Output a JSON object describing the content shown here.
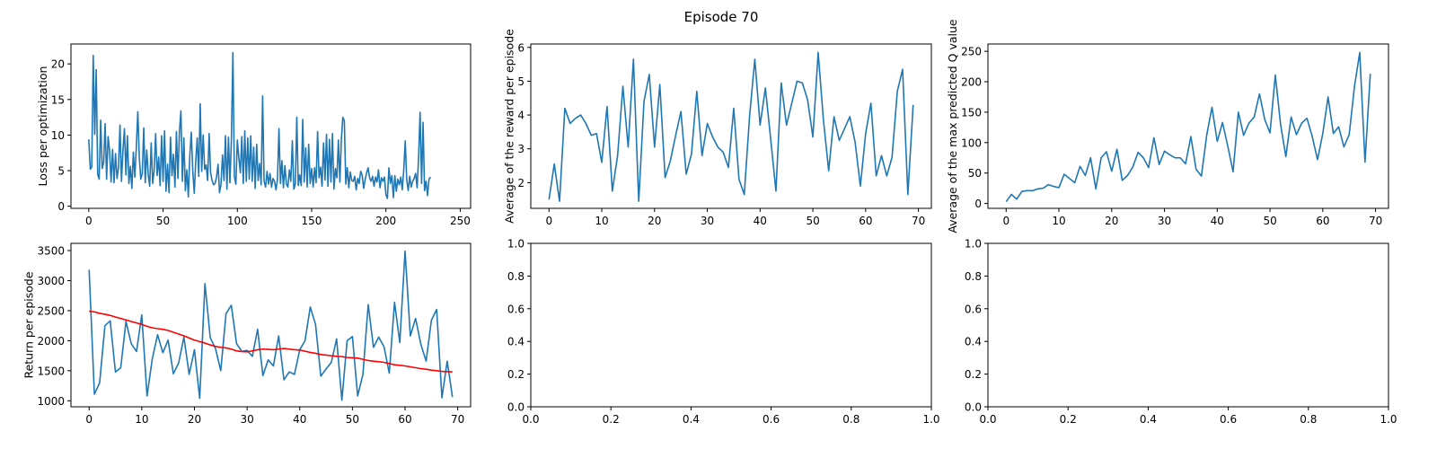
{
  "figure": {
    "title": "Episode 70"
  },
  "chart_data": [
    {
      "type": "line",
      "ylabel": "Loss per optimization",
      "xlim": [
        -12,
        257
      ],
      "ylim": [
        -0.3,
        22.8
      ],
      "xticks": [
        0,
        50,
        100,
        150,
        200,
        250
      ],
      "yticks": [
        0,
        5,
        10,
        15,
        20
      ],
      "series": [
        {
          "color": "#1f77b4",
          "x_start": 0,
          "y": [
            9.4,
            5.2,
            5.5,
            21.2,
            10.1,
            19.2,
            4.5,
            3.8,
            12.1,
            5.3,
            6.1,
            11.6,
            3.8,
            9.8,
            7.8,
            3.4,
            8.0,
            3.3,
            7.4,
            3.9,
            5.4,
            11.4,
            3.5,
            7.9,
            10.9,
            4.4,
            9.9,
            3.2,
            5.6,
            2.5,
            7.6,
            4.1,
            8.3,
            13.3,
            6.9,
            3.8,
            4.6,
            11.0,
            3.3,
            7.9,
            4.5,
            2.8,
            8.9,
            3.2,
            5.0,
            10.2,
            4.3,
            6.9,
            2.9,
            9.9,
            3.5,
            10.6,
            2.1,
            5.9,
            1.9,
            9.7,
            4.3,
            7.3,
            2.7,
            10.5,
            3.9,
            10.4,
            13.4,
            3.5,
            9.6,
            2.2,
            5.1,
            1.3,
            7.1,
            10.4,
            4.9,
            1.8,
            6.4,
            9.6,
            4.2,
            14.4,
            4.9,
            10.0,
            5.2,
            5.8,
            3.6,
            10.2,
            4.7,
            3.6,
            3.0,
            3.2,
            4.1,
            5.9,
            1.9,
            3.1,
            7.2,
            3.6,
            9.9,
            2.4,
            9.7,
            3.3,
            9.4,
            21.6,
            4.1,
            3.1,
            9.3,
            6.8,
            4.7,
            9.8,
            3.2,
            10.6,
            3.5,
            9.6,
            3.8,
            9.9,
            3.5,
            8.3,
            2.5,
            8.7,
            3.6,
            6.0,
            3.0,
            15.5,
            3.5,
            2.7,
            4.9,
            3.1,
            4.6,
            2.7,
            3.9,
            3.5,
            2.3,
            3.8,
            10.9,
            3.2,
            6.4,
            2.6,
            5.7,
            3.1,
            2.7,
            5.1,
            3.5,
            9.2,
            2.4,
            3.1,
            12.5,
            2.9,
            4.4,
            2.9,
            12.2,
            3.4,
            8.2,
            2.7,
            8.7,
            3.2,
            5.3,
            2.7,
            5.4,
            3.3,
            10.5,
            4.0,
            5.5,
            2.8,
            8.9,
            3.7,
            10.1,
            2.8,
            9.4,
            3.4,
            10.2,
            2.4,
            5.3,
            4.0,
            9.3,
            3.4,
            9.4,
            12.5,
            12.0,
            3.1,
            5.4,
            2.6,
            4.8,
            3.6,
            3.5,
            4.2,
            2.3,
            3.9,
            3.2,
            4.9,
            4.4,
            2.5,
            3.7,
            4.7,
            5.4,
            4.0,
            3.5,
            4.2,
            2.8,
            4.1,
            3.4,
            5.1,
            2.6,
            4.0,
            3.5,
            4.1,
            1.6,
            1.1,
            5.4,
            3.2,
            4.3,
            1.2,
            4.3,
            2.1,
            3.8,
            3.0,
            4.1,
            2.3,
            5.1,
            9.2,
            3.7,
            2.2,
            4.2,
            2.7,
            3.5,
            3.9,
            4.6,
            2.6,
            6.9,
            13.2,
            3.2,
            11.8,
            2.2,
            3.5,
            1.5,
            3.8,
            4.1
          ],
          "name": ""
        }
      ]
    },
    {
      "type": "line",
      "ylabel": "Average of the reward per episode",
      "xlim": [
        -3.45,
        72.45
      ],
      "ylim": [
        1.24,
        6.1
      ],
      "xticks": [
        0,
        10,
        20,
        30,
        40,
        50,
        60,
        70
      ],
      "yticks": [
        2,
        3,
        4,
        5,
        6
      ],
      "series": [
        {
          "color": "#1f77b4",
          "x_start": 0,
          "y": [
            1.5,
            2.55,
            1.45,
            4.2,
            3.75,
            3.9,
            4.0,
            3.75,
            3.4,
            3.45,
            2.6,
            4.25,
            1.75,
            2.8,
            4.85,
            3.05,
            5.65,
            1.45,
            4.4,
            5.2,
            3.05,
            4.9,
            2.15,
            2.65,
            3.4,
            4.1,
            2.25,
            2.85,
            4.7,
            2.8,
            3.75,
            3.35,
            3.05,
            2.9,
            2.45,
            4.2,
            2.1,
            1.65,
            3.95,
            5.65,
            3.7,
            4.8,
            3.3,
            1.75,
            4.95,
            3.7,
            4.35,
            5.0,
            4.95,
            4.45,
            3.35,
            5.85,
            3.85,
            2.35,
            3.95,
            3.25,
            3.6,
            3.95,
            3.2,
            1.9,
            3.45,
            4.35,
            2.2,
            2.8,
            2.2,
            2.75,
            4.7,
            5.35,
            1.65,
            4.3
          ],
          "name": ""
        }
      ]
    },
    {
      "type": "line",
      "ylabel": "Average of the max predicted Q value",
      "xlim": [
        -3.45,
        72.45
      ],
      "ylim": [
        -8.0,
        262.0
      ],
      "xticks": [
        0,
        10,
        20,
        30,
        40,
        50,
        60,
        70
      ],
      "yticks": [
        0,
        50,
        100,
        150,
        200,
        250
      ],
      "series": [
        {
          "color": "#1f77b4",
          "x_start": 0,
          "y": [
            3,
            15,
            7,
            20,
            21,
            21,
            24,
            25,
            31,
            28,
            26,
            48,
            41,
            34,
            61,
            46,
            75,
            24,
            75,
            85,
            53,
            89,
            38,
            46,
            60,
            84,
            75,
            59,
            108,
            64,
            86,
            80,
            75,
            75,
            65,
            110,
            56,
            45,
            112,
            158,
            102,
            133,
            94,
            52,
            150,
            112,
            132,
            142,
            180,
            138,
            116,
            211,
            130,
            77,
            142,
            113,
            132,
            140,
            110,
            72,
            115,
            175,
            115,
            126,
            93,
            113,
            192,
            248,
            68,
            213
          ],
          "name": ""
        }
      ]
    },
    {
      "type": "line",
      "ylabel": "Return per episode",
      "xlim": [
        -3.45,
        72.45
      ],
      "ylim": [
        900,
        3620
      ],
      "xticks": [
        0,
        10,
        20,
        30,
        40,
        50,
        60,
        70
      ],
      "yticks": [
        1000,
        1500,
        2000,
        2500,
        3000,
        3500
      ],
      "series": [
        {
          "color": "#1f77b4",
          "x_start": 0,
          "y": [
            3180,
            1110,
            1300,
            2250,
            2330,
            1480,
            1550,
            2320,
            1950,
            1820,
            2430,
            1080,
            1700,
            2100,
            1800,
            2010,
            1450,
            1630,
            2060,
            1440,
            1850,
            1040,
            2950,
            2050,
            1870,
            1500,
            2450,
            2590,
            1950,
            1820,
            1840,
            1740,
            2190,
            1420,
            1680,
            1580,
            2080,
            1350,
            1480,
            1440,
            1850,
            2000,
            2560,
            2270,
            1410,
            1530,
            1640,
            2030,
            1010,
            2000,
            2070,
            1080,
            1440,
            2600,
            1890,
            2060,
            1900,
            1460,
            2640,
            1970,
            3490,
            2080,
            2370,
            1940,
            1660,
            2340,
            2520,
            1050,
            1660,
            1060
          ],
          "name": ""
        },
        {
          "color": "#ff0000",
          "x_start": 0,
          "y": [
            2490,
            2480,
            2455,
            2440,
            2420,
            2395,
            2370,
            2345,
            2320,
            2295,
            2270,
            2240,
            2215,
            2200,
            2190,
            2170,
            2140,
            2110,
            2080,
            2045,
            2010,
            1985,
            1960,
            1930,
            1905,
            1890,
            1880,
            1860,
            1830,
            1820,
            1815,
            1830,
            1850,
            1860,
            1855,
            1850,
            1860,
            1870,
            1860,
            1850,
            1845,
            1825,
            1805,
            1790,
            1770,
            1760,
            1750,
            1740,
            1735,
            1720,
            1715,
            1710,
            1690,
            1670,
            1660,
            1650,
            1640,
            1620,
            1600,
            1590,
            1580,
            1565,
            1550,
            1535,
            1525,
            1510,
            1500,
            1490,
            1485,
            1480
          ],
          "name": ""
        }
      ]
    },
    {
      "type": "line",
      "ylabel": "",
      "xlim": [
        0,
        1
      ],
      "ylim": [
        0,
        1
      ],
      "xticks": [
        0.0,
        0.2,
        0.4,
        0.6,
        0.8,
        1.0
      ],
      "yticks": [
        0.0,
        0.2,
        0.4,
        0.6,
        0.8,
        1.0
      ],
      "series": []
    },
    {
      "type": "line",
      "ylabel": "",
      "xlim": [
        0,
        1
      ],
      "ylim": [
        0,
        1
      ],
      "xticks": [
        0.0,
        0.2,
        0.4,
        0.6,
        0.8,
        1.0
      ],
      "yticks": [
        0.0,
        0.2,
        0.4,
        0.6,
        0.8,
        1.0
      ],
      "series": []
    }
  ]
}
